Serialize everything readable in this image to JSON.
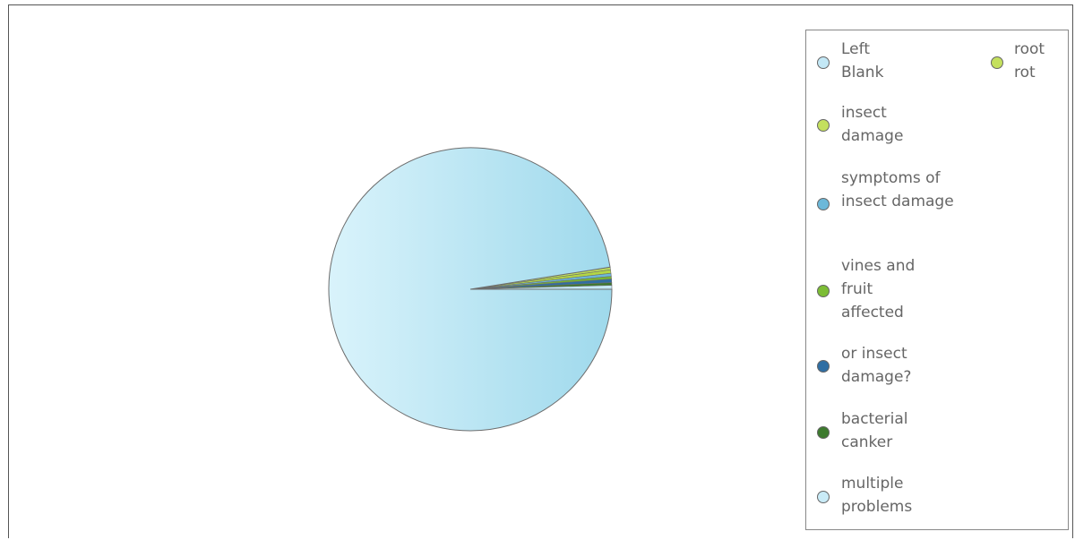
{
  "chart_data": {
    "type": "pie",
    "title": "",
    "slices": [
      {
        "label": "Left Blank",
        "value": 97.5,
        "color": "#b5e2f2"
      },
      {
        "label": "root rot",
        "value": 0.3,
        "color": "#bfe05a"
      },
      {
        "label": "insect damage",
        "value": 0.4,
        "color": "#b3d645"
      },
      {
        "label": "symptoms of insect damage",
        "value": 0.35,
        "color": "#6cb8d9"
      },
      {
        "label": "vines and fruit affected",
        "value": 0.3,
        "color": "#77b832"
      },
      {
        "label": "or insect damage?",
        "value": 0.4,
        "color": "#2f6ea3"
      },
      {
        "label": "bacterial canker",
        "value": 0.3,
        "color": "#3d7a2e"
      },
      {
        "label": "multiple problems",
        "value": 0.45,
        "color": "#c4e8f5"
      }
    ],
    "legend": {
      "placement": "right",
      "entries": [
        "Left Blank",
        "root rot",
        "insect damage",
        "symptoms of insect damage",
        "vines and fruit affected",
        "or insect damage?",
        "bacterial canker",
        "multiple problems"
      ]
    }
  }
}
